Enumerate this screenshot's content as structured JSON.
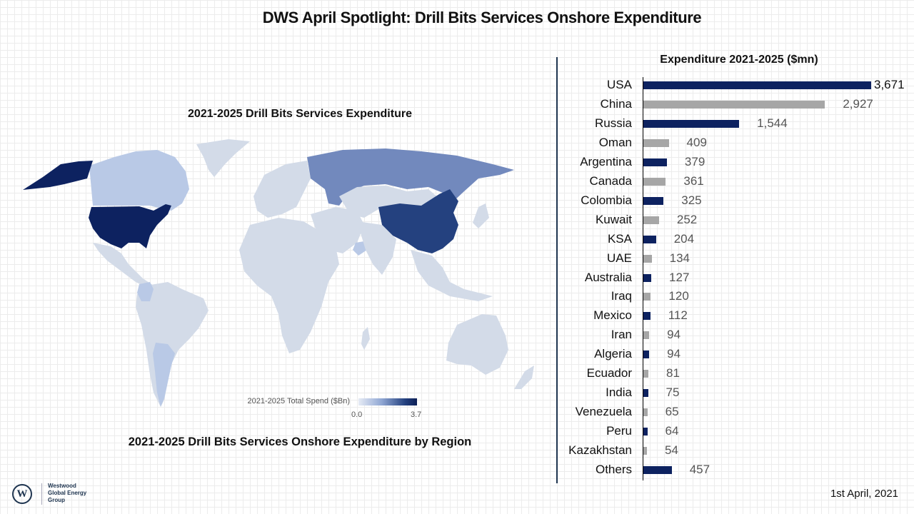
{
  "header": {
    "title": "DWS April Spotlight: Drill Bits Services Onshore Expenditure"
  },
  "map": {
    "title": "2021-2025 Drill Bits Services Expenditure",
    "subtitle": "2021-2025 Drill Bits Services Onshore Expenditure by Region",
    "legend": {
      "label": "2021-2025 Total Spend ($Bn)",
      "min": "0.0",
      "max": "3.7"
    },
    "colors": {
      "base": "#d3dbe8",
      "max": "#0d2260",
      "low": "#b9c9e6",
      "mid": "#7289bd",
      "high": "#24417f"
    },
    "highlighted_regions": [
      {
        "name": "USA",
        "level": "max"
      },
      {
        "name": "China",
        "level": "high"
      },
      {
        "name": "Russia",
        "level": "mid"
      },
      {
        "name": "Canada",
        "level": "low"
      },
      {
        "name": "Argentina",
        "level": "low"
      },
      {
        "name": "Colombia",
        "level": "low"
      },
      {
        "name": "Oman",
        "level": "low"
      }
    ]
  },
  "chart_data": {
    "type": "bar",
    "orientation": "horizontal",
    "title": "Expenditure 2021-2025 ($mn)",
    "xlabel": "",
    "ylabel": "",
    "xlim": [
      0,
      3671
    ],
    "grid": false,
    "categories": [
      "USA",
      "China",
      "Russia",
      "Oman",
      "Argentina",
      "Canada",
      "Colombia",
      "Kuwait",
      "KSA",
      "UAE",
      "Australia",
      "Iraq",
      "Mexico",
      "Iran",
      "Algeria",
      "Ecuador",
      "India",
      "Venezuela",
      "Peru",
      "Kazakhstan",
      "Others"
    ],
    "values": [
      3671,
      2927,
      1544,
      409,
      379,
      361,
      325,
      252,
      204,
      134,
      127,
      120,
      112,
      94,
      94,
      81,
      75,
      65,
      64,
      54,
      457
    ],
    "value_labels": [
      "3,671",
      "2,927",
      "1,544",
      "409",
      "379",
      "361",
      "325",
      "252",
      "204",
      "134",
      "127",
      "120",
      "112",
      "94",
      "94",
      "81",
      "75",
      "65",
      "64",
      "54",
      "457"
    ],
    "bar_colors": [
      "#0d2260",
      "#a6a6a6"
    ]
  },
  "footer": {
    "logo_text": [
      "Westwood",
      "Global Energy",
      "Group"
    ],
    "logo_mark": "W",
    "date": "1st April, 2021"
  }
}
